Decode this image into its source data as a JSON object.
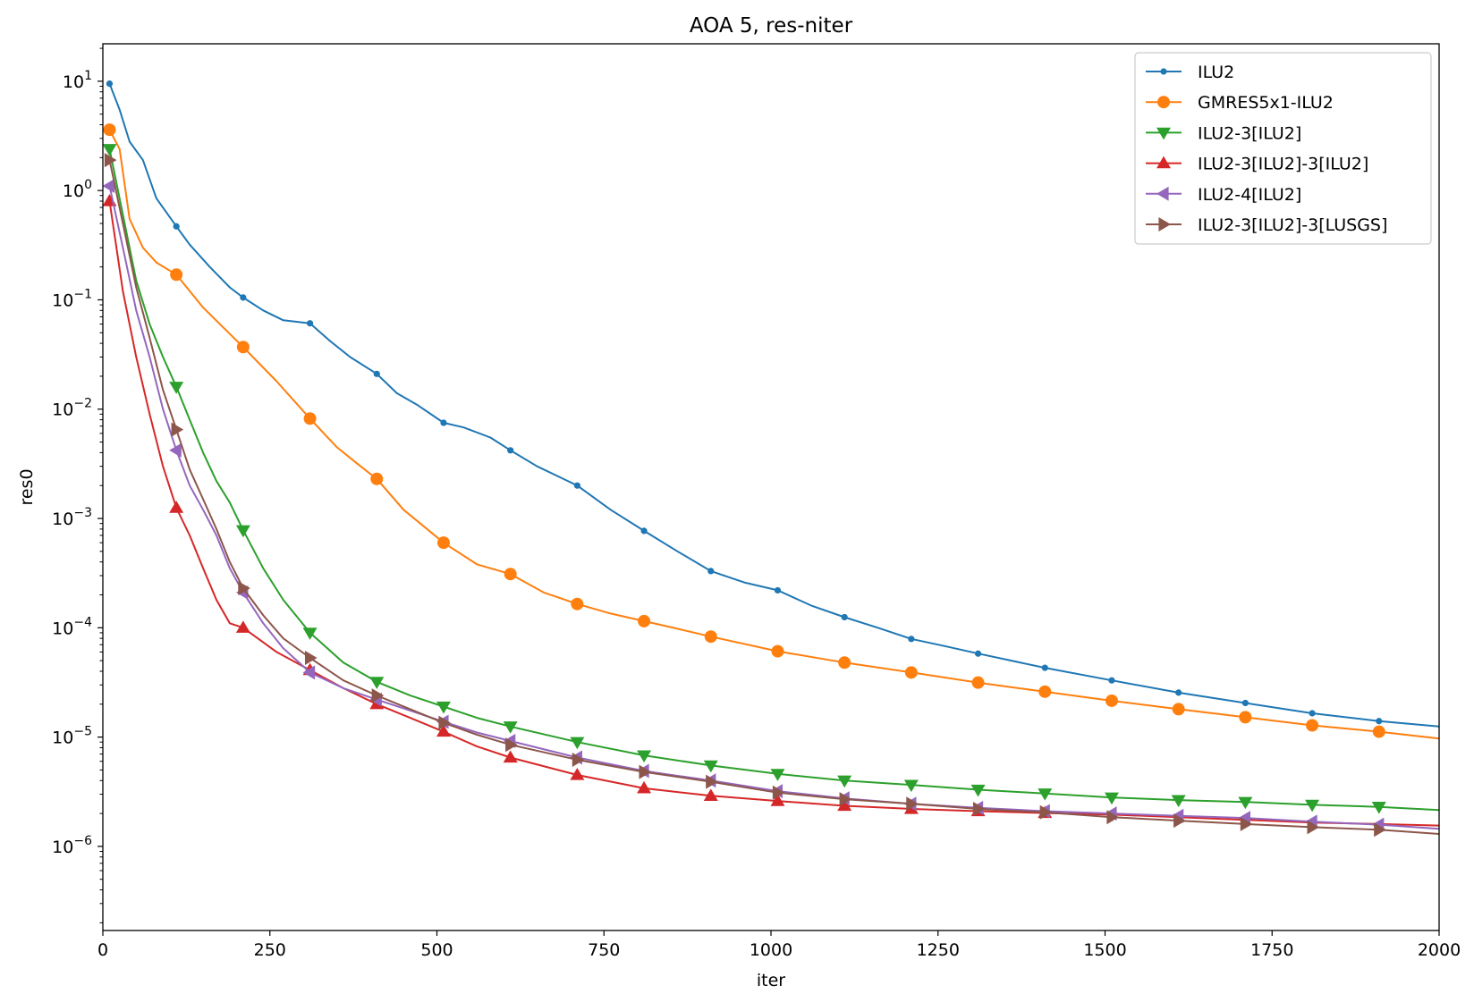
{
  "chart_data": {
    "type": "line",
    "title": "AOA 5, res-niter",
    "xlabel": "iter",
    "ylabel": "res0",
    "xlim": [
      0,
      2000
    ],
    "ylim": [
      1.7e-07,
      22
    ],
    "yscale": "log",
    "grid": false,
    "legend_position": "top-right",
    "x_ticks": [
      "0",
      "250",
      "500",
      "750",
      "1000",
      "1250",
      "1500",
      "1750",
      "2000"
    ],
    "y_ticks": [
      {
        "mantissa": "10",
        "exp": "1"
      },
      {
        "mantissa": "10",
        "exp": "0"
      },
      {
        "mantissa": "10",
        "exp": "−1"
      },
      {
        "mantissa": "10",
        "exp": "−2"
      },
      {
        "mantissa": "10",
        "exp": "−3"
      },
      {
        "mantissa": "10",
        "exp": "−4"
      },
      {
        "mantissa": "10",
        "exp": "−5"
      },
      {
        "mantissa": "10",
        "exp": "−6"
      }
    ],
    "series": [
      {
        "name": "ILU2",
        "color": "#1f77b4",
        "marker": "point",
        "x": [
          10,
          25,
          40,
          60,
          80,
          110,
          130,
          160,
          190,
          210,
          240,
          270,
          310,
          340,
          370,
          410,
          440,
          470,
          510,
          540,
          580,
          610,
          650,
          710,
          760,
          810,
          860,
          910,
          960,
          1010,
          1060,
          1110,
          1160,
          1210,
          1260,
          1310,
          1410,
          1510,
          1610,
          1710,
          1810,
          1910,
          2000
        ],
        "y": [
          9.5,
          5.5,
          2.8,
          1.9,
          0.85,
          0.47,
          0.32,
          0.2,
          0.13,
          0.105,
          0.08,
          0.065,
          0.061,
          0.042,
          0.03,
          0.021,
          0.014,
          0.011,
          0.0075,
          0.0068,
          0.0055,
          0.0042,
          0.003,
          0.002,
          0.0012,
          0.00077,
          0.0005,
          0.00033,
          0.00026,
          0.00022,
          0.00016,
          0.000125,
          0.0001,
          7.9e-05,
          6.8e-05,
          5.8e-05,
          4.3e-05,
          3.3e-05,
          2.55e-05,
          2.05e-05,
          1.65e-05,
          1.4e-05,
          1.25e-05
        ],
        "marker_x": [
          10,
          110,
          210,
          310,
          410,
          510,
          610,
          710,
          810,
          910,
          1010,
          1110,
          1210,
          1310,
          1410,
          1510,
          1610,
          1710,
          1810,
          1910
        ]
      },
      {
        "name": "GMRES5x1-ILU2",
        "color": "#ff7f0e",
        "marker": "circle",
        "x": [
          10,
          25,
          40,
          60,
          80,
          110,
          150,
          210,
          260,
          310,
          350,
          380,
          410,
          450,
          480,
          510,
          560,
          610,
          660,
          710,
          760,
          810,
          860,
          910,
          1010,
          1110,
          1210,
          1310,
          1410,
          1510,
          1610,
          1710,
          1810,
          1910,
          2000
        ],
        "y": [
          3.6,
          2.4,
          0.55,
          0.3,
          0.22,
          0.17,
          0.085,
          0.037,
          0.018,
          0.0082,
          0.0045,
          0.0032,
          0.0023,
          0.0012,
          0.00085,
          0.0006,
          0.00038,
          0.00031,
          0.00021,
          0.000165,
          0.000135,
          0.000115,
          9.8e-05,
          8.3e-05,
          6.1e-05,
          4.8e-05,
          3.9e-05,
          3.15e-05,
          2.6e-05,
          2.15e-05,
          1.8e-05,
          1.52e-05,
          1.28e-05,
          1.12e-05,
          9.7e-06
        ],
        "marker_x": [
          10,
          110,
          210,
          310,
          410,
          510,
          610,
          710,
          810,
          910,
          1010,
          1110,
          1210,
          1310,
          1410,
          1510,
          1610,
          1710,
          1810,
          1910
        ]
      },
      {
        "name": "ILU2-3[ILU2]",
        "color": "#2ca02c",
        "marker": "triangle_down",
        "x": [
          10,
          30,
          50,
          70,
          90,
          110,
          130,
          150,
          170,
          190,
          210,
          240,
          270,
          310,
          360,
          410,
          460,
          510,
          560,
          610,
          710,
          810,
          910,
          1010,
          1110,
          1210,
          1310,
          1410,
          1510,
          1610,
          1710,
          1810,
          1910,
          2000
        ],
        "y": [
          2.4,
          0.6,
          0.15,
          0.06,
          0.03,
          0.016,
          0.008,
          0.004,
          0.0022,
          0.0014,
          0.00078,
          0.00035,
          0.00018,
          9e-05,
          4.8e-05,
          3.2e-05,
          2.4e-05,
          1.9e-05,
          1.5e-05,
          1.25e-05,
          9e-06,
          6.8e-06,
          5.5e-06,
          4.6e-06,
          4e-06,
          3.65e-06,
          3.3e-06,
          3.05e-06,
          2.8e-06,
          2.65e-06,
          2.55e-06,
          2.4e-06,
          2.3e-06,
          2.15e-06
        ],
        "marker_x": [
          10,
          110,
          210,
          310,
          410,
          510,
          610,
          710,
          810,
          910,
          1010,
          1110,
          1210,
          1310,
          1410,
          1510,
          1610,
          1710,
          1810,
          1910
        ]
      },
      {
        "name": "ILU2-3[ILU2]-3[ILU2]",
        "color": "#d62728",
        "marker": "triangle_up",
        "x": [
          10,
          30,
          50,
          70,
          90,
          110,
          130,
          150,
          170,
          190,
          210,
          260,
          310,
          360,
          410,
          460,
          510,
          560,
          610,
          710,
          810,
          910,
          1010,
          1110,
          1210,
          1310,
          1410,
          1510,
          1610,
          1710,
          1810,
          1910,
          2000
        ],
        "y": [
          0.8,
          0.12,
          0.03,
          0.009,
          0.003,
          0.00125,
          0.0007,
          0.00035,
          0.00018,
          0.00011,
          0.0001,
          6e-05,
          4.1e-05,
          2.8e-05,
          2e-05,
          1.5e-05,
          1.12e-05,
          8.2e-06,
          6.5e-06,
          4.5e-06,
          3.4e-06,
          2.9e-06,
          2.6e-06,
          2.35e-06,
          2.2e-06,
          2.1e-06,
          2.02e-06,
          1.95e-06,
          1.85e-06,
          1.75e-06,
          1.65e-06,
          1.6e-06,
          1.55e-06
        ],
        "marker_x": [
          10,
          110,
          210,
          310,
          410,
          510,
          610,
          710,
          810,
          910,
          1010,
          1110,
          1210,
          1310,
          1410
        ]
      },
      {
        "name": "ILU2-4[ILU2]",
        "color": "#9467bd",
        "marker": "triangle_left",
        "x": [
          10,
          30,
          50,
          70,
          90,
          110,
          130,
          150,
          170,
          190,
          210,
          240,
          270,
          310,
          360,
          410,
          460,
          510,
          560,
          610,
          710,
          810,
          910,
          1010,
          1110,
          1210,
          1310,
          1410,
          1510,
          1610,
          1710,
          1810,
          1910,
          2000
        ],
        "y": [
          1.1,
          0.3,
          0.08,
          0.03,
          0.01,
          0.0042,
          0.002,
          0.0012,
          0.0007,
          0.00035,
          0.00021,
          0.00011,
          6.5e-05,
          3.9e-05,
          2.8e-05,
          2.2e-05,
          1.75e-05,
          1.38e-05,
          1.1e-05,
          9.2e-06,
          6.5e-06,
          4.9e-06,
          4e-06,
          3.2e-06,
          2.75e-06,
          2.45e-06,
          2.25e-06,
          2.1e-06,
          2e-06,
          1.9e-06,
          1.82e-06,
          1.68e-06,
          1.58e-06,
          1.45e-06
        ],
        "marker_x": [
          10,
          110,
          210,
          310,
          410,
          510,
          610,
          710,
          810,
          910,
          1010,
          1110,
          1210,
          1310,
          1410,
          1510,
          1610,
          1710,
          1810,
          1910
        ]
      },
      {
        "name": "ILU2-3[ILU2]-3[LUSGS]",
        "color": "#8c564b",
        "marker": "triangle_right",
        "x": [
          10,
          30,
          50,
          70,
          90,
          110,
          130,
          150,
          170,
          190,
          210,
          240,
          270,
          310,
          360,
          410,
          460,
          510,
          560,
          610,
          710,
          810,
          910,
          1010,
          1110,
          1210,
          1310,
          1410,
          1510,
          1610,
          1710,
          1810,
          1910,
          2000
        ],
        "y": [
          1.9,
          0.5,
          0.13,
          0.045,
          0.015,
          0.0065,
          0.0028,
          0.0015,
          0.0008,
          0.0004,
          0.00023,
          0.00013,
          8e-05,
          5.3e-05,
          3.3e-05,
          2.4e-05,
          1.8e-05,
          1.35e-05,
          1.05e-05,
          8.5e-06,
          6.2e-06,
          4.8e-06,
          3.9e-06,
          3.1e-06,
          2.7e-06,
          2.45e-06,
          2.2e-06,
          2.05e-06,
          1.85e-06,
          1.72e-06,
          1.6e-06,
          1.5e-06,
          1.42e-06,
          1.3e-06
        ],
        "marker_x": [
          10,
          110,
          210,
          310,
          410,
          510,
          610,
          710,
          810,
          910,
          1010,
          1110,
          1210,
          1310,
          1410,
          1510,
          1610,
          1710,
          1810,
          1910
        ]
      }
    ]
  }
}
